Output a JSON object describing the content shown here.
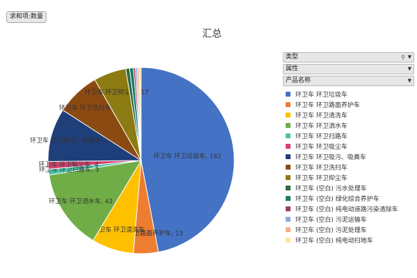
{
  "field_chip": "求和项:数量",
  "filters": [
    {
      "label": "类型",
      "has_filter_icon": true
    },
    {
      "label": "属性",
      "has_filter_icon": false
    },
    {
      "label": "产品名称",
      "has_filter_icon": false
    }
  ],
  "chart_data": {
    "type": "pie",
    "title": "汇总",
    "legend_position": "right",
    "slices": [
      {
        "name": "环卫车 环卫垃圾车",
        "value": 142,
        "color": "#4472c4",
        "label": "环卫车 环卫垃圾车, 142"
      },
      {
        "name": "环卫车 环卫路面养护车",
        "value": 13,
        "color": "#ed7d31",
        "label": "环卫车 环卫路面养护车, 13"
      },
      {
        "name": "环卫车 环卫清洗车",
        "value": 22,
        "color": "#ffc000",
        "label": "环卫车 环卫清洗车"
      },
      {
        "name": "环卫车 环卫洒水车",
        "value": 42,
        "color": "#70ad47",
        "label": "环卫车 环卫洒水车, 42"
      },
      {
        "name": "环卫车 环卫扫路车",
        "value": 3,
        "color": "#4bc3a8",
        "label": "环卫车 环卫扫路车, 3"
      },
      {
        "name": "环卫车 环卫吸尘车",
        "value": 4,
        "color": "#d6416e",
        "label": "环卫车 环卫吸尘车, 4"
      },
      {
        "name": "环卫车 环卫吸污、吸粪车",
        "value": 28,
        "color": "#1f3f7a",
        "label": "环卫车 环卫吸污、吸粪车, 28"
      },
      {
        "name": "环卫车 环卫洗扫车",
        "value": 23,
        "color": "#8b4a12",
        "label": "环卫车 环卫洗扫车, 23"
      },
      {
        "name": "环卫车 环卫抑尘车",
        "value": 17,
        "color": "#8c7a12",
        "label": "环卫车 环卫抑尘车, 17"
      },
      {
        "name": "环卫车 (空白) 污水处理车",
        "value": 2,
        "color": "#2e6b3f",
        "label": ""
      },
      {
        "name": "环卫车 (空白) 绿化综合养护车",
        "value": 2,
        "color": "#1b7c6b",
        "label": ""
      },
      {
        "name": "环卫车 (空白) 纯电动道路污染清除车",
        "value": 1,
        "color": "#a33b55",
        "label": ""
      },
      {
        "name": "环卫车 (空白) 污泥运输车",
        "value": 1,
        "color": "#8fa9d9",
        "label": ""
      },
      {
        "name": "环卫车 (空白) 污泥处理车",
        "value": 1,
        "color": "#f4b183",
        "label": ""
      },
      {
        "name": "环卫车 (空白) 纯电动扫地车",
        "value": 1,
        "color": "#ffe699",
        "label": ""
      }
    ],
    "legend_items": [
      "环卫车 环卫垃圾车",
      "环卫车 环卫路面养护车",
      "环卫车 环卫清洗车",
      "环卫车 环卫洒水车",
      "环卫车 环卫扫路车",
      "环卫车 环卫吸尘车",
      "环卫车 环卫吸污、吸粪车",
      "环卫车 环卫洗扫车",
      "环卫车 环卫抑尘车",
      "环卫车 (空白) 污水处理车",
      "环卫车 (空白) 绿化综合养护车",
      "环卫车 (空白) 纯电动道路污染清除车",
      "环卫车 (空白) 污泥运输车",
      "环卫车 (空白) 污泥处理车",
      "环卫车 (空白) 纯电动扫地车"
    ]
  }
}
